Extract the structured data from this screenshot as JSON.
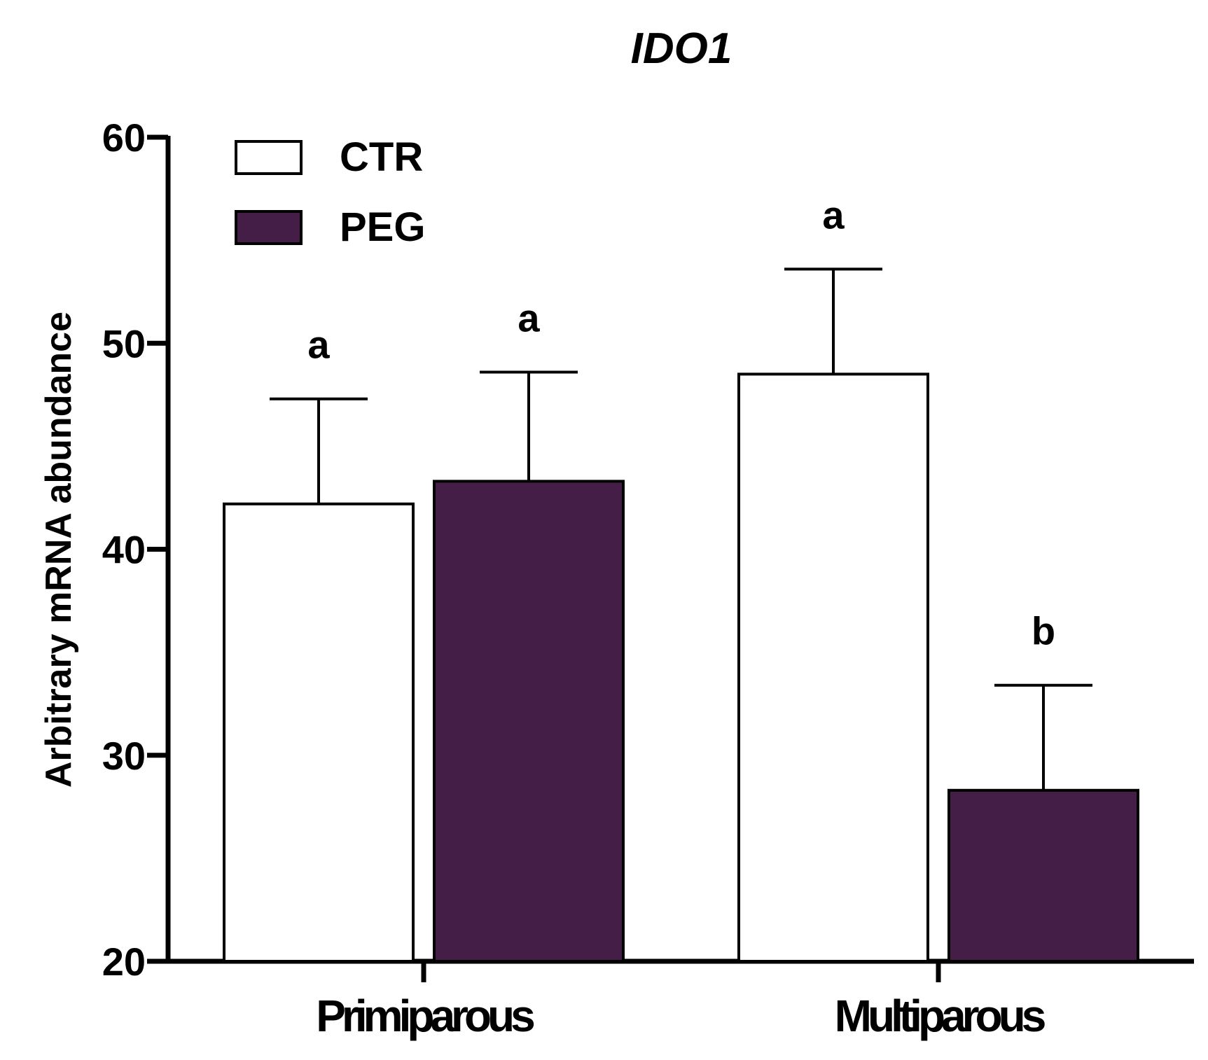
{
  "chart_data": {
    "type": "bar",
    "title": "IDO1",
    "xlabel": "",
    "ylabel": "Arbitrary mRNA abundance",
    "ylim": [
      20,
      60
    ],
    "yticks": [
      20,
      30,
      40,
      50,
      60
    ],
    "categories": [
      "Primiparous",
      "Multiparous"
    ],
    "series": [
      {
        "name": "CTR",
        "color": "#ffffff",
        "values": [
          42.2,
          48.5
        ],
        "errors": [
          5.1,
          5.1
        ],
        "labels": [
          "a",
          "a"
        ]
      },
      {
        "name": "PEG",
        "color": "#451e47",
        "values": [
          43.3,
          28.3
        ],
        "errors": [
          5.3,
          5.1
        ],
        "labels": [
          "a",
          "b"
        ]
      }
    ],
    "legend_position": "top-left"
  }
}
